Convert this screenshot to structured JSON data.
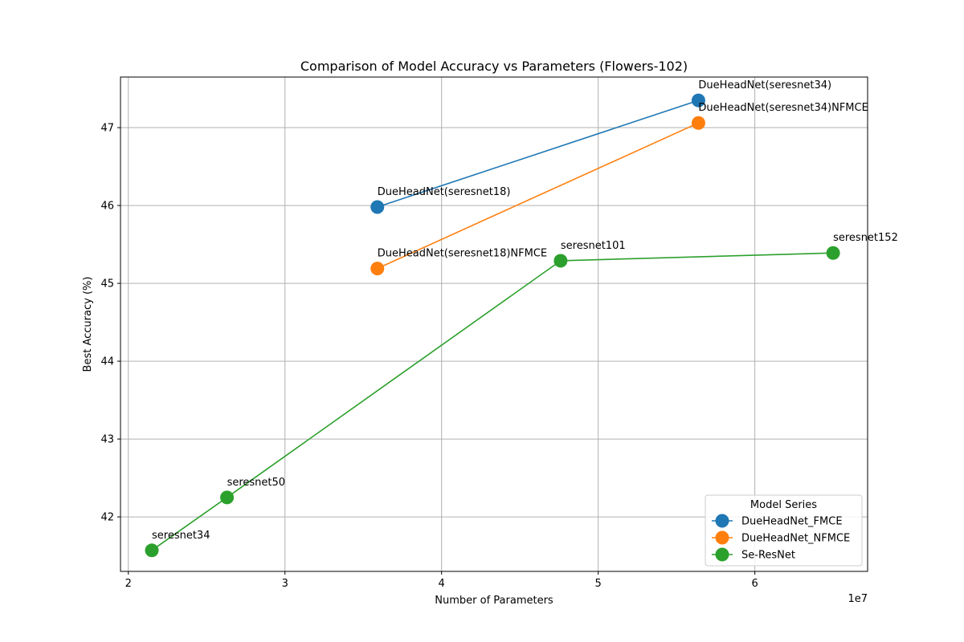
{
  "chart_data": {
    "type": "line",
    "title": "Comparison of Model Accuracy vs Parameters (Flowers-102)",
    "xlabel": "Number of Parameters",
    "ylabel": "Best Accuracy (%)",
    "x_offset_label": "1e7",
    "xlim": [
      1.95,
      6.72
    ],
    "ylim": [
      41.3,
      47.65
    ],
    "xticks": [
      2,
      3,
      4,
      5,
      6
    ],
    "yticks": [
      42,
      43,
      44,
      45,
      46,
      47
    ],
    "grid": true,
    "legend": {
      "title": "Model Series",
      "placement": "lower-right"
    },
    "series": [
      {
        "name": "DueHeadNet_FMCE",
        "color": "#1f77b4",
        "points": [
          {
            "x": 3.59,
            "y": 45.98,
            "label": "DueHeadNet(seresnet18)"
          },
          {
            "x": 5.64,
            "y": 47.35,
            "label": "DueHeadNet(seresnet34)"
          }
        ]
      },
      {
        "name": "DueHeadNet_NFMCE",
        "color": "#ff7f0e",
        "points": [
          {
            "x": 3.59,
            "y": 45.19,
            "label": "DueHeadNet(seresnet18)NFMCE"
          },
          {
            "x": 5.64,
            "y": 47.06,
            "label": "DueHeadNet(seresnet34)NFMCE"
          }
        ]
      },
      {
        "name": "Se-ResNet",
        "color": "#2ca02c",
        "points": [
          {
            "x": 2.15,
            "y": 41.57,
            "label": "seresnet34"
          },
          {
            "x": 2.63,
            "y": 42.25,
            "label": "seresnet50"
          },
          {
            "x": 4.76,
            "y": 45.29,
            "label": "seresnet101"
          },
          {
            "x": 6.5,
            "y": 45.39,
            "label": "seresnet152"
          }
        ]
      }
    ]
  }
}
